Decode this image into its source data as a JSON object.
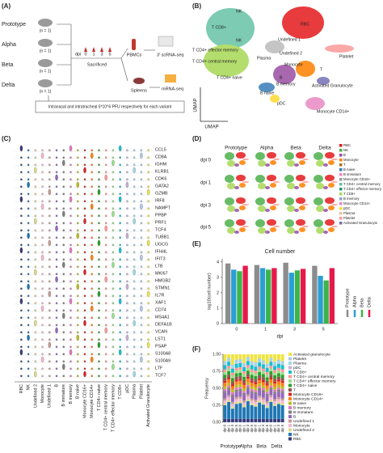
{
  "panel_labels": [
    "(A)",
    "(B)",
    "(C)",
    "(D)",
    "(E)",
    "(F)"
  ],
  "panel_a": {
    "groups": [
      {
        "name": "Prototype",
        "n": "(n = 1)"
      },
      {
        "name": "Alpha",
        "n": "(n = 1)"
      },
      {
        "name": "Beta",
        "n": "(n = 1)"
      },
      {
        "name": "Delta",
        "n": "(n = 1)"
      }
    ],
    "dpi_label": "dpi",
    "dpi_ticks": [
      "0",
      "1",
      "3",
      "5"
    ],
    "sacrificed": "Sacrificed",
    "pbmcs": "PBMCs",
    "scrna": "3' scRNA-seq",
    "spleens": "Spleens",
    "mrna": "mRNA-seq",
    "note": "Intranasal and intratracheal 5*10^6 PFU respectively for each variant"
  },
  "panel_b": {
    "clusters": [
      "NK",
      "RBC",
      "T CD8+",
      "NK",
      "Undefined 1",
      "Undefined 2",
      "Platelet",
      "Plasma",
      "T CD4+ effector memory",
      "T CD4+ central memory",
      "Monocyte",
      "T",
      "B",
      "B memory",
      "T CD4+ naive",
      "B naive",
      "Activated Granulocyte",
      "pDC",
      "Monocyte CD14+"
    ],
    "axis_x": "UMAP",
    "axis_y": "UMAP"
  },
  "panel_c": {
    "genes": [
      "CCL5",
      "CD8A",
      "IGHM",
      "KLRB1",
      "CDK6",
      "GATA2",
      "GZMB",
      "IRF8",
      "NAMPT",
      "PPBP",
      "PRF1",
      "TCF4",
      "TUBB1",
      "UGCG",
      "IFI44L",
      "IFIT3",
      "LTB",
      "MKI67",
      "HMGB2",
      "STMN1",
      "IL7R",
      "XAF1",
      "CD74",
      "MS4A1",
      "DEFA1B",
      "VCAN",
      "LST1",
      "PSAP",
      "S100A8",
      "S100A9",
      "LTF",
      "TCF7"
    ],
    "cell_types": [
      {
        "name": "RBC",
        "color": "#393b79"
      },
      {
        "name": "NK",
        "color": "#1f77b4"
      },
      {
        "name": "Undefined 2",
        "color": "#dbdb8d"
      },
      {
        "name": "Monocyte",
        "color": "#f7b6d2"
      },
      {
        "name": "Undefined 1",
        "color": "#c49c94"
      },
      {
        "name": "B",
        "color": "#9467bd"
      },
      {
        "name": "B immature",
        "color": "#7f7f7f"
      },
      {
        "name": "B memory",
        "color": "#e377c2"
      },
      {
        "name": "B naive",
        "color": "#bcbd22"
      },
      {
        "name": "Monocyte CD16+",
        "color": "#d62728"
      },
      {
        "name": "Monocyte CD14+",
        "color": "#ff7f0e"
      },
      {
        "name": "T CD4+ naive",
        "color": "#2ca02c"
      },
      {
        "name": "T CD4+ central memory",
        "color": "#ff9896"
      },
      {
        "name": "T CD4+ effector memory",
        "color": "#98df8a"
      },
      {
        "name": "T CD8+",
        "color": "#17becf"
      },
      {
        "name": "pDC",
        "color": "#c5b0d5"
      },
      {
        "name": "Plasma",
        "color": "#9edae5"
      },
      {
        "name": "Platelet",
        "color": "#aec7e8"
      },
      {
        "name": "Activated Granulocyte",
        "color": "#f0e442"
      }
    ]
  },
  "panel_d": {
    "columns": [
      "Prototype",
      "Alpha",
      "Beta",
      "Delta"
    ],
    "rows": [
      "dpi 0",
      "dpi 1",
      "dpi 3",
      "dpi 5"
    ],
    "legend": [
      {
        "name": "RBC",
        "color": "#e41a1c"
      },
      {
        "name": "NK",
        "color": "#4daf4a"
      },
      {
        "name": "B",
        "color": "#984ea3"
      },
      {
        "name": "Monocyte",
        "color": "#ff7f00"
      },
      {
        "name": "T",
        "color": "#a6761d"
      },
      {
        "name": "B naive",
        "color": "#377eb8"
      },
      {
        "name": "B immature",
        "color": "#f781bf"
      },
      {
        "name": "Monocyte CD16+",
        "color": "#999999"
      },
      {
        "name": "T CD4+ central memory",
        "color": "#66c2a5"
      },
      {
        "name": "T CD4+ effector memory",
        "color": "#1b9e77"
      },
      {
        "name": "T CD8+",
        "color": "#a6d854"
      },
      {
        "name": "B memory",
        "color": "#8da0cb"
      },
      {
        "name": "Monocyte CD14+",
        "color": "#e78ac3"
      },
      {
        "name": "pDC",
        "color": "#ffd92f"
      },
      {
        "name": "Plasma",
        "color": "#e5c494"
      },
      {
        "name": "Platelet",
        "color": "#fb9a99"
      },
      {
        "name": "Activated Granulocyte",
        "color": "#7570b3"
      }
    ]
  },
  "chart_data": [
    {
      "type": "bar",
      "title": "Cell number",
      "ylabel": "log10(cell number)",
      "xlabel": "dpi",
      "categories": [
        "0",
        "1",
        "3",
        "5"
      ],
      "ylim": [
        0,
        4.2
      ],
      "yticks": [
        0,
        1,
        2,
        3,
        4
      ],
      "series": [
        {
          "name": "Prototype",
          "color": "#8c8c8c",
          "values": [
            3.9,
            3.8,
            3.95,
            3.75
          ]
        },
        {
          "name": "Alpha",
          "color": "#2a9fd6",
          "values": [
            3.5,
            3.6,
            3.3,
            3.1
          ]
        },
        {
          "name": "Beta",
          "color": "#3cb44b",
          "values": [
            3.4,
            3.5,
            3.45,
            2.8
          ]
        },
        {
          "name": "Delta",
          "color": "#e6194b",
          "values": [
            3.75,
            3.6,
            3.55,
            3.6
          ]
        }
      ]
    },
    {
      "type": "stacked_bar",
      "ylabel": "Frequency",
      "categories": [
        "dpi 0",
        "dpi 1",
        "dpi 3",
        "dpi 5",
        "dpi 0",
        "dpi 1",
        "dpi 3",
        "dpi 5",
        "dpi 0",
        "dpi 1",
        "dpi 3",
        "dpi 5",
        "dpi 0",
        "dpi 1",
        "dpi 3",
        "dpi 5"
      ],
      "groups": [
        "Prototype",
        "Alpha",
        "Beta",
        "Delta"
      ],
      "ylim": [
        0,
        1
      ],
      "yticks": [
        {
          "value": 0,
          "label": "0.00"
        },
        {
          "value": 0.25,
          "label": "0.25"
        },
        {
          "value": 0.5,
          "label": "0.50"
        },
        {
          "value": 0.75,
          "label": "0.75"
        },
        {
          "value": 1,
          "label": "1.00"
        }
      ],
      "series": [
        {
          "name": "Activated granulocyte",
          "color": "#f0e442",
          "values": [
            0.1,
            0.05,
            0.15,
            0.08,
            0.07,
            0.13,
            0.04,
            0.1,
            0.12,
            0.06,
            0.09,
            0.14,
            0.05,
            0.11,
            0.08,
            0.1
          ]
        },
        {
          "name": "Platelet",
          "color": "#aec7e8",
          "values": [
            0.02,
            0.02,
            0.02,
            0.02,
            0.02,
            0.02,
            0.02,
            0.02,
            0.02,
            0.02,
            0.02,
            0.02,
            0.02,
            0.02,
            0.02,
            0.02
          ]
        },
        {
          "name": "Plasma",
          "color": "#9edae5",
          "values": [
            0.03,
            0.03,
            0.03,
            0.03,
            0.03,
            0.03,
            0.03,
            0.03,
            0.03,
            0.03,
            0.03,
            0.03,
            0.03,
            0.03,
            0.03,
            0.03
          ]
        },
        {
          "name": "pDC",
          "color": "#c5b0d5",
          "values": [
            0.01,
            0.01,
            0.01,
            0.01,
            0.01,
            0.01,
            0.01,
            0.01,
            0.01,
            0.01,
            0.01,
            0.01,
            0.01,
            0.01,
            0.01,
            0.01
          ]
        },
        {
          "name": "T CD8+",
          "color": "#17becf",
          "values": [
            0.06,
            0.06,
            0.06,
            0.06,
            0.06,
            0.06,
            0.06,
            0.06,
            0.06,
            0.06,
            0.06,
            0.06,
            0.06,
            0.06,
            0.06,
            0.06
          ]
        },
        {
          "name": "T CD4+ central memory",
          "color": "#ff9896",
          "values": [
            0.04,
            0.04,
            0.04,
            0.04,
            0.04,
            0.04,
            0.04,
            0.04,
            0.04,
            0.04,
            0.04,
            0.04,
            0.04,
            0.04,
            0.04,
            0.04
          ]
        },
        {
          "name": "T CD4+ effector memory",
          "color": "#98df8a",
          "values": [
            0.04,
            0.04,
            0.04,
            0.04,
            0.04,
            0.04,
            0.04,
            0.04,
            0.04,
            0.04,
            0.04,
            0.04,
            0.04,
            0.04,
            0.04,
            0.04
          ]
        },
        {
          "name": "T CD4+ naive",
          "color": "#2ca02c",
          "values": [
            0.05,
            0.05,
            0.05,
            0.05,
            0.05,
            0.05,
            0.05,
            0.05,
            0.05,
            0.05,
            0.05,
            0.05,
            0.05,
            0.05,
            0.05,
            0.05
          ]
        },
        {
          "name": "T",
          "color": "#8c564b",
          "values": [
            0.04,
            0.04,
            0.04,
            0.04,
            0.04,
            0.04,
            0.04,
            0.04,
            0.04,
            0.04,
            0.04,
            0.04,
            0.04,
            0.04,
            0.04,
            0.04
          ]
        },
        {
          "name": "Monocyte CD16+",
          "color": "#d62728",
          "values": [
            0.03,
            0.03,
            0.03,
            0.03,
            0.03,
            0.03,
            0.03,
            0.03,
            0.03,
            0.03,
            0.03,
            0.03,
            0.03,
            0.03,
            0.03,
            0.03
          ]
        },
        {
          "name": "Monocyte CD14+",
          "color": "#ff7f0e",
          "values": [
            0.05,
            0.05,
            0.05,
            0.05,
            0.05,
            0.05,
            0.05,
            0.05,
            0.05,
            0.05,
            0.05,
            0.05,
            0.05,
            0.05,
            0.05,
            0.05
          ]
        },
        {
          "name": "B naive",
          "color": "#bcbd22",
          "values": [
            0.04,
            0.04,
            0.04,
            0.04,
            0.04,
            0.04,
            0.04,
            0.04,
            0.04,
            0.04,
            0.04,
            0.04,
            0.04,
            0.04,
            0.04,
            0.04
          ]
        },
        {
          "name": "B memory",
          "color": "#e377c2",
          "values": [
            0.03,
            0.03,
            0.03,
            0.03,
            0.03,
            0.03,
            0.03,
            0.03,
            0.03,
            0.03,
            0.03,
            0.03,
            0.03,
            0.03,
            0.03,
            0.03
          ]
        },
        {
          "name": "B immature",
          "color": "#7f7f7f",
          "values": [
            0.03,
            0.03,
            0.03,
            0.03,
            0.03,
            0.03,
            0.03,
            0.03,
            0.03,
            0.03,
            0.03,
            0.03,
            0.03,
            0.03,
            0.03,
            0.03
          ]
        },
        {
          "name": "B",
          "color": "#9467bd",
          "values": [
            0.08,
            0.08,
            0.08,
            0.08,
            0.08,
            0.08,
            0.08,
            0.08,
            0.08,
            0.08,
            0.08,
            0.08,
            0.08,
            0.08,
            0.08,
            0.08
          ]
        },
        {
          "name": "Undefined 1",
          "color": "#c49c94",
          "values": [
            0.03,
            0.03,
            0.03,
            0.03,
            0.03,
            0.03,
            0.03,
            0.03,
            0.03,
            0.03,
            0.03,
            0.03,
            0.03,
            0.03,
            0.03,
            0.03
          ]
        },
        {
          "name": "Monocyte",
          "color": "#f7b6d2",
          "values": [
            0.04,
            0.04,
            0.04,
            0.04,
            0.04,
            0.04,
            0.04,
            0.04,
            0.04,
            0.04,
            0.04,
            0.04,
            0.04,
            0.04,
            0.04,
            0.04
          ]
        },
        {
          "name": "Undefined 2",
          "color": "#dbdb8d",
          "values": [
            0.03,
            0.03,
            0.03,
            0.03,
            0.03,
            0.03,
            0.03,
            0.03,
            0.03,
            0.03,
            0.03,
            0.03,
            0.03,
            0.03,
            0.03,
            0.03
          ]
        },
        {
          "name": "NK",
          "color": "#1f77b4",
          "values": [
            0.2,
            0.25,
            0.15,
            0.22,
            0.23,
            0.17,
            0.26,
            0.2,
            0.18,
            0.24,
            0.21,
            0.16,
            0.25,
            0.19,
            0.22,
            0.2
          ]
        },
        {
          "name": "RBC",
          "color": "#393b79",
          "values": [
            0.05,
            0.05,
            0.05,
            0.05,
            0.05,
            0.05,
            0.05,
            0.05,
            0.05,
            0.05,
            0.05,
            0.05,
            0.05,
            0.05,
            0.05,
            0.05
          ]
        }
      ]
    }
  ]
}
